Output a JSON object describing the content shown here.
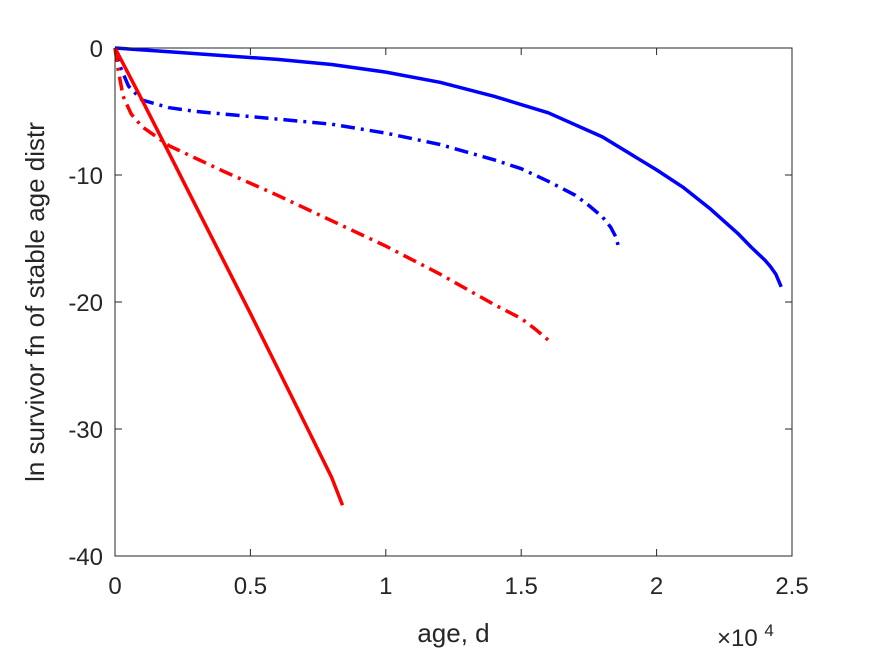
{
  "chart_data": {
    "type": "line",
    "xlabel": "age, d",
    "ylabel": "ln survivor fn of stable age distr",
    "x_exponent_label": {
      "base": "×10",
      "power": "4"
    },
    "xlim": [
      0,
      25000
    ],
    "ylim": [
      -40,
      0
    ],
    "xticks": [
      0,
      5000,
      10000,
      15000,
      20000,
      25000
    ],
    "xtick_labels": [
      "0",
      "0.5",
      "1",
      "1.5",
      "2",
      "2.5"
    ],
    "yticks": [
      0,
      -10,
      -20,
      -30,
      -40
    ],
    "ytick_labels": [
      "0",
      "-10",
      "-20",
      "-30",
      "-40"
    ],
    "grid": false,
    "box": true,
    "series": [
      {
        "color": "#0000ff",
        "style": "solid",
        "x": [
          0,
          2000,
          4000,
          6000,
          8000,
          10000,
          12000,
          14000,
          16000,
          18000,
          20000,
          21000,
          22000,
          23000,
          23500,
          24000,
          24200,
          24400,
          24600
        ],
        "y": [
          0,
          -0.3,
          -0.6,
          -0.9,
          -1.3,
          -1.9,
          -2.7,
          -3.8,
          -5.1,
          -7.0,
          -9.6,
          -11.0,
          -12.7,
          -14.6,
          -15.7,
          -16.7,
          -17.2,
          -17.8,
          -18.8
        ]
      },
      {
        "color": "#0000ff",
        "style": "dashdot",
        "x": [
          0,
          200,
          500,
          1000,
          2000,
          3000,
          4000,
          6000,
          8000,
          10000,
          12000,
          14000,
          15000,
          16000,
          17000,
          17500,
          18000,
          18300,
          18500,
          18600
        ],
        "y": [
          0,
          -1.5,
          -3.0,
          -4.1,
          -4.7,
          -5.0,
          -5.2,
          -5.6,
          -6.0,
          -6.7,
          -7.6,
          -8.8,
          -9.5,
          -10.5,
          -11.6,
          -12.4,
          -13.3,
          -14.1,
          -14.9,
          -15.7
        ]
      },
      {
        "color": "#ff0000",
        "style": "dashdot",
        "x": [
          0,
          100,
          300,
          600,
          1000,
          2000,
          3000,
          4000,
          6000,
          8000,
          10000,
          12000,
          13000,
          14000,
          15000,
          15500,
          16000
        ],
        "y": [
          0,
          -1.5,
          -3.8,
          -5.2,
          -6.2,
          -7.7,
          -8.7,
          -9.7,
          -11.6,
          -13.6,
          -15.6,
          -17.8,
          -19.0,
          -20.2,
          -21.3,
          -22.1,
          -23.0
        ]
      },
      {
        "color": "#ff0000",
        "style": "solid",
        "x": [
          0,
          1000,
          2000,
          3000,
          4000,
          5000,
          6000,
          7000,
          8000,
          8400
        ],
        "y": [
          0,
          -4.1,
          -8.3,
          -12.5,
          -16.7,
          -20.9,
          -25.2,
          -29.5,
          -33.8,
          -36.0
        ]
      }
    ]
  }
}
